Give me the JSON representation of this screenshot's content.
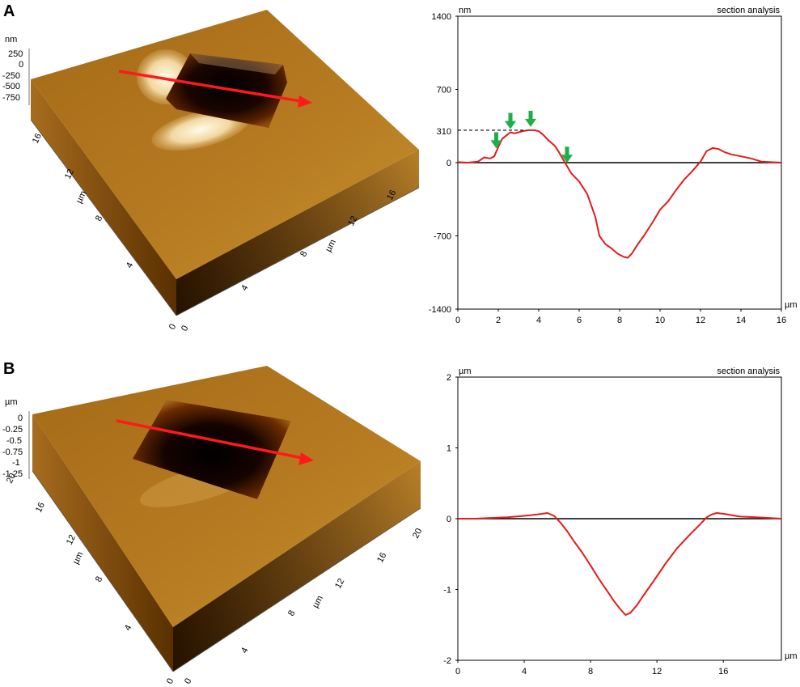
{
  "panels": [
    {
      "letter": "A",
      "afm": {
        "z_unit": "nm",
        "z_ticks": [
          "250",
          "0",
          "-250",
          "-500",
          "-750"
        ],
        "left_axis_unit": "µm",
        "left_axis_ticks": [
          "16",
          "12",
          "8",
          "4",
          "0"
        ],
        "front_axis_unit": "µm",
        "front_axis_ticks": [
          "0",
          "4",
          "8",
          "12",
          "16"
        ]
      }
    },
    {
      "letter": "B",
      "afm": {
        "z_unit": "µm",
        "z_ticks": [
          "0",
          "-0.25",
          "-0.5",
          "-0.75",
          "-1",
          "-1.25"
        ],
        "left_axis_unit": "µm",
        "left_axis_ticks": [
          "20",
          "16",
          "12",
          "8",
          "4",
          "0"
        ],
        "front_axis_unit": "µm",
        "front_axis_ticks": [
          "0",
          "4",
          "8",
          "12",
          "16",
          "20"
        ]
      }
    }
  ],
  "chart_data": [
    {
      "type": "line",
      "panel": "A",
      "title": "section analysis",
      "ylabel": "nm",
      "xlabel": "µm",
      "xlim": [
        0,
        16
      ],
      "ylim": [
        -1400,
        1400
      ],
      "x_ticks": [
        "0",
        "2",
        "4",
        "6",
        "8",
        "10",
        "12",
        "14",
        "16"
      ],
      "y_ticks": [
        "1400",
        "700",
        "0",
        "-700",
        "-1400"
      ],
      "annotation": {
        "label": "310",
        "value": 310
      },
      "arrow_markers_x": [
        1.9,
        2.6,
        3.6,
        5.4
      ],
      "baseline": 0,
      "series": [
        {
          "color": "#e41b1b",
          "x": [
            0,
            0.5,
            1.0,
            1.3,
            1.6,
            1.8,
            2.0,
            2.2,
            2.4,
            2.6,
            2.8,
            3.0,
            3.2,
            3.5,
            3.8,
            4.0,
            4.2,
            4.5,
            4.8,
            5.0,
            5.3,
            5.6,
            6.0,
            6.4,
            6.8,
            7.0,
            7.3,
            7.6,
            7.9,
            8.2,
            8.4,
            8.6,
            8.9,
            9.2,
            9.6,
            10.0,
            10.4,
            10.8,
            11.2,
            11.6,
            12.0,
            12.3,
            12.6,
            12.9,
            13.2,
            13.5,
            14.0,
            14.5,
            15.0,
            15.5,
            16.0
          ],
          "y": [
            5,
            0,
            10,
            50,
            40,
            60,
            150,
            230,
            260,
            290,
            280,
            290,
            300,
            310,
            310,
            300,
            270,
            210,
            160,
            100,
            0,
            -100,
            -180,
            -300,
            -520,
            -700,
            -780,
            -820,
            -870,
            -900,
            -910,
            -870,
            -780,
            -700,
            -580,
            -450,
            -370,
            -260,
            -160,
            -80,
            10,
            110,
            140,
            130,
            100,
            80,
            60,
            40,
            10,
            5,
            0
          ]
        }
      ]
    },
    {
      "type": "line",
      "panel": "B",
      "title": "section analysis",
      "ylabel": "µm",
      "xlabel": "µm",
      "xlim": [
        0,
        19.5
      ],
      "ylim": [
        -2,
        2
      ],
      "x_ticks": [
        "0",
        "4",
        "8",
        "12",
        "16"
      ],
      "y_ticks": [
        "2",
        "1",
        "0",
        "-1",
        "-2"
      ],
      "baseline": 0,
      "series": [
        {
          "color": "#e41b1b",
          "x": [
            0,
            1,
            2,
            3,
            4,
            4.8,
            5.4,
            5.8,
            6.2,
            6.6,
            7.0,
            7.5,
            8.0,
            8.5,
            9.0,
            9.4,
            9.8,
            10.1,
            10.4,
            10.8,
            11.2,
            11.8,
            12.5,
            13.2,
            14.0,
            14.6,
            15.0,
            15.3,
            15.6,
            16.0,
            16.5,
            17.0,
            18.0,
            19.5
          ],
          "y": [
            0,
            0,
            0.01,
            0.02,
            0.04,
            0.06,
            0.08,
            0.04,
            -0.06,
            -0.18,
            -0.32,
            -0.48,
            -0.66,
            -0.85,
            -1.02,
            -1.16,
            -1.28,
            -1.36,
            -1.33,
            -1.22,
            -1.08,
            -0.88,
            -0.64,
            -0.42,
            -0.22,
            -0.08,
            0.02,
            0.06,
            0.08,
            0.07,
            0.05,
            0.03,
            0.02,
            0
          ]
        }
      ]
    }
  ]
}
